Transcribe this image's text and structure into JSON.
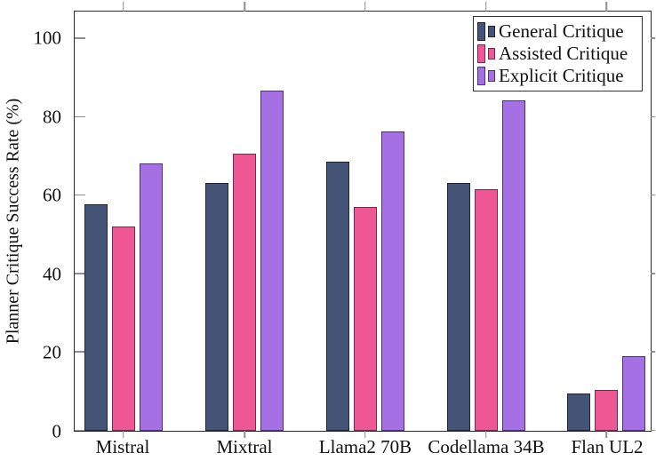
{
  "figure": {
    "ylabel": "Planner Critique Success Rate (%)"
  },
  "chart_data": {
    "type": "bar",
    "title": "",
    "xlabel": "",
    "ylabel": "Planner Critique Success Rate (%)",
    "categories": [
      "Mistral",
      "Mixtral",
      "Llama2 70B",
      "Codellama 34B",
      "Flan UL2"
    ],
    "series": [
      {
        "name": "General Critique",
        "fill_color": "#455377",
        "border_color": "#1e2439",
        "values": [
          57.5,
          63,
          68.5,
          63,
          9.5
        ]
      },
      {
        "name": "Assisted Critique",
        "fill_color": "#ee5694",
        "border_color": "#6e2c55",
        "values": [
          52,
          70.5,
          57,
          61.5,
          10.5
        ]
      },
      {
        "name": "Explicit Critique",
        "fill_color": "#a470e4",
        "border_color": "#503078",
        "values": [
          68,
          86.5,
          76,
          84,
          19
        ]
      }
    ],
    "ylim": [
      0,
      107
    ],
    "yticks": [
      0,
      20,
      40,
      60,
      80,
      100
    ],
    "grid": false,
    "legend_position": "top-right"
  }
}
